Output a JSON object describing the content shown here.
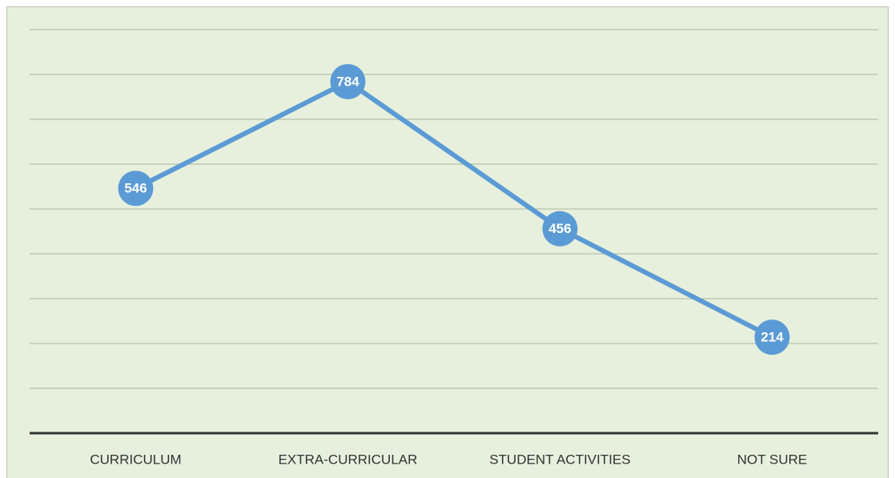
{
  "chart_data": {
    "type": "line",
    "categories": [
      "CURRICULUM",
      "EXTRA-CURRICULAR",
      "STUDENT ACTIVITIES",
      "NOT SURE"
    ],
    "values": [
      546,
      784,
      456,
      214
    ],
    "color": "#5b9bd5",
    "ylim": [
      0,
      900
    ],
    "yticks": [
      0,
      100,
      200,
      300,
      400,
      500,
      600,
      700,
      800,
      900
    ],
    "grid": true
  }
}
